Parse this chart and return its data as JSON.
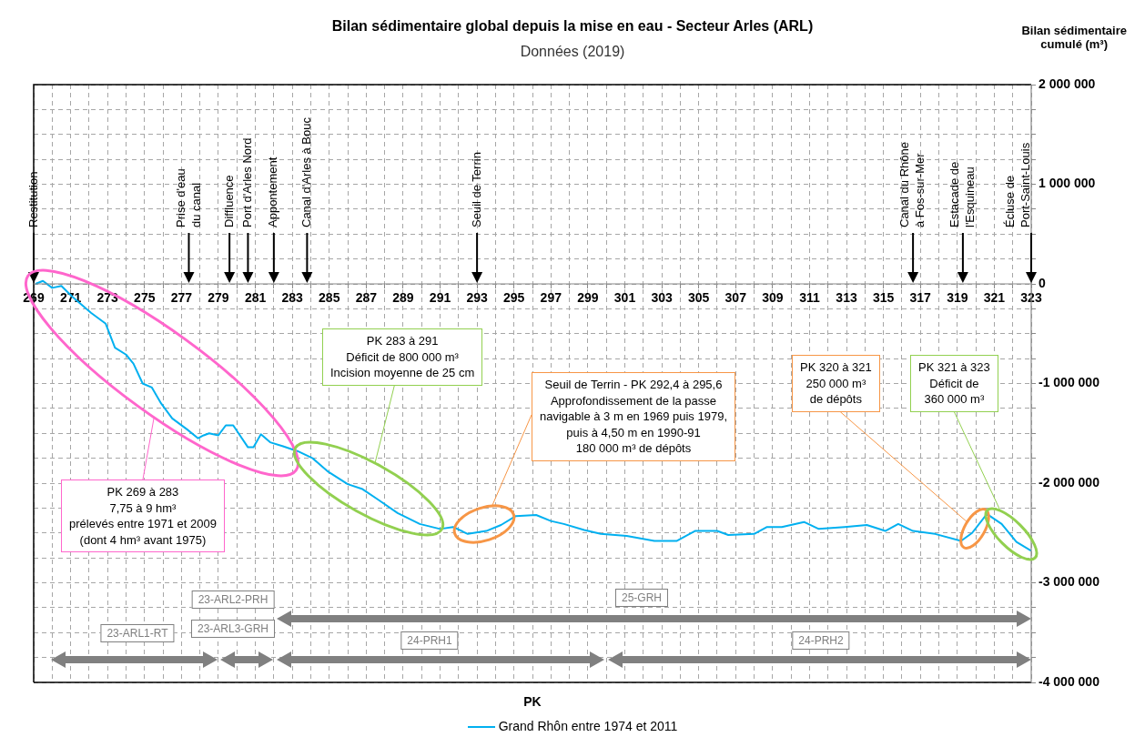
{
  "chart_data": {
    "type": "line",
    "title": "Bilan sédimentaire global depuis la mise en eau - Secteur Arles (ARL)",
    "subtitle": "Données (2019)",
    "xlabel": "PK",
    "ylabel": "Bilan sédimentaire\ncumulé (m³)",
    "x": [
      269.1,
      269.5,
      270.0,
      270.5,
      271.1,
      272.1,
      272.9,
      273.4,
      274.0,
      274.4,
      274.9,
      275.4,
      275.9,
      276.5,
      277.3,
      277.9,
      278.2,
      278.5,
      279.0,
      279.4,
      279.8,
      280.6,
      280.9,
      281.3,
      281.8,
      282.5,
      283.3,
      284.1,
      284.9,
      286.0,
      286.8,
      287.6,
      288.7,
      289.9,
      291.0,
      291.7,
      292.5,
      293.5,
      294.3,
      295.1,
      296.2,
      297.0,
      297.7,
      298.8,
      299.7,
      301.1,
      302.6,
      303.8,
      304.8,
      306.0,
      306.6,
      308.0,
      308.7,
      309.5,
      310.7,
      311.5,
      312.9,
      314.1,
      315.1,
      315.8,
      316.6,
      317.8,
      319.2,
      319.8,
      320.6,
      321.4,
      322.2,
      323.0
    ],
    "series": [
      {
        "name": "Grand Rhôn entre 1974 et 2011",
        "color": "#00b0f0",
        "values": [
          0,
          30000,
          -40000,
          -20000,
          -130000,
          -290000,
          -400000,
          -640000,
          -710000,
          -800000,
          -1000000,
          -1040000,
          -1200000,
          -1350000,
          -1460000,
          -1550000,
          -1520000,
          -1500000,
          -1520000,
          -1420000,
          -1420000,
          -1640000,
          -1640000,
          -1510000,
          -1590000,
          -1630000,
          -1680000,
          -1750000,
          -1880000,
          -2010000,
          -2060000,
          -2160000,
          -2300000,
          -2410000,
          -2460000,
          -2440000,
          -2510000,
          -2480000,
          -2420000,
          -2330000,
          -2320000,
          -2380000,
          -2410000,
          -2470000,
          -2510000,
          -2530000,
          -2580000,
          -2580000,
          -2480000,
          -2480000,
          -2520000,
          -2510000,
          -2440000,
          -2440000,
          -2390000,
          -2460000,
          -2440000,
          -2420000,
          -2480000,
          -2410000,
          -2480000,
          -2510000,
          -2580000,
          -2500000,
          -2310000,
          -2410000,
          -2590000,
          -2680000
        ]
      }
    ],
    "xlim": [
      269,
      323
    ],
    "xticks": [
      269,
      {
        "value": 270,
        "label": null
      },
      271,
      {
        "value": 272,
        "label": null
      },
      273,
      {
        "value": 274,
        "label": null
      },
      275,
      {
        "value": 276,
        "label": null
      },
      277,
      {
        "value": 278,
        "label": null
      },
      279,
      {
        "value": 280,
        "label": null
      },
      281,
      {
        "value": 282,
        "label": null
      },
      283,
      {
        "value": 284,
        "label": null
      },
      285,
      {
        "value": 286,
        "label": null
      },
      287,
      {
        "value": 288,
        "label": null
      },
      289,
      {
        "value": 290,
        "label": null
      },
      291,
      {
        "value": 292,
        "label": null
      },
      293,
      {
        "value": 294,
        "label": null
      },
      295,
      {
        "value": 296,
        "label": null
      },
      297,
      {
        "value": 298,
        "label": null
      },
      299,
      {
        "value": 300,
        "label": null
      },
      301,
      {
        "value": 302,
        "label": null
      },
      303,
      {
        "value": 304,
        "label": null
      },
      305,
      {
        "value": 306,
        "label": null
      },
      307,
      {
        "value": 308,
        "label": null
      },
      309,
      {
        "value": 310,
        "label": null
      },
      311,
      {
        "value": 312,
        "label": null
      },
      313,
      {
        "value": 314,
        "label": null
      },
      315,
      {
        "value": 316,
        "label": null
      },
      317,
      {
        "value": 318,
        "label": null
      },
      319,
      {
        "value": 320,
        "label": null
      },
      321,
      {
        "value": 322,
        "label": null
      },
      323
    ],
    "ylim": [
      -4000000,
      2000000
    ],
    "yticks": [
      {
        "value": -4000000,
        "label": "-4 000 000"
      },
      {
        "value": -3750000,
        "label": null
      },
      {
        "value": -3500000,
        "label": null
      },
      {
        "value": -3250000,
        "label": null
      },
      {
        "value": -3000000,
        "label": "-3 000 000"
      },
      {
        "value": -2750000,
        "label": null
      },
      {
        "value": -2500000,
        "label": null
      },
      {
        "value": -2250000,
        "label": null
      },
      {
        "value": -2000000,
        "label": "-2 000 000"
      },
      {
        "value": -1750000,
        "label": null
      },
      {
        "value": -1500000,
        "label": null
      },
      {
        "value": -1250000,
        "label": null
      },
      {
        "value": -1000000,
        "label": "-1 000 000"
      },
      {
        "value": -750000,
        "label": null
      },
      {
        "value": -500000,
        "label": null
      },
      {
        "value": -250000,
        "label": null
      },
      0,
      {
        "value": 250000,
        "label": null
      },
      {
        "value": 500000,
        "label": null
      },
      {
        "value": 750000,
        "label": null
      },
      {
        "value": 1000000,
        "label": "1 000 000"
      },
      {
        "value": 1250000,
        "label": null
      },
      {
        "value": 1500000,
        "label": null
      },
      {
        "value": 1750000,
        "label": null
      },
      {
        "value": 2000000,
        "label": "2 000 000"
      }
    ],
    "grid": true,
    "legend": "bottom",
    "marker": "none",
    "line_style": "solid",
    "ref_lines": [
      {
        "axis": "x",
        "value": 269,
        "label": "Restitution"
      },
      {
        "axis": "x",
        "value": 277.4,
        "label": "Prise d'eau\ndu canal"
      },
      {
        "axis": "x",
        "value": 279.6,
        "label": "Diffluence"
      },
      {
        "axis": "x",
        "value": 280.6,
        "label": "Port d'Arles Nord"
      },
      {
        "axis": "x",
        "value": 282.0,
        "label": "Appontement"
      },
      {
        "axis": "x",
        "value": 283.8,
        "label": "Canal d'Arles à Bouc"
      },
      {
        "axis": "x",
        "value": 293.0,
        "label": "Seuil de Terrin"
      },
      {
        "axis": "x",
        "value": 316.6,
        "label": "Canal du Rhône\nà Fos-sur-Mer"
      },
      {
        "axis": "x",
        "value": 319.3,
        "label": "Estacade de\nl'Esquineau"
      },
      {
        "axis": "x",
        "value": 323,
        "label": "Écluse de\nPort-Saint-Louis"
      }
    ],
    "annotations": [
      "PK 269 à 283\n7,75 à 9 hm³\nprélevés entre 1971 et 2009\n(dont 4 hm³ avant 1975)",
      "PK 283 à 291\nDéficit de 800 000 m³\nIncision moyenne de 25 cm",
      "Seuil de Terrin - PK 292,4 à 295,6\nApprofondissement de la passe\nnavigable à 3 m en 1969 puis 1979,\npuis à 4,50 m en 1990-91\n180 000 m³ de dépôts",
      "PK 320 à 321\n250 000 m³\nde dépôts",
      "PK 321 à 323\nDéficit de\n360 000 m³",
      "23-ARL1-RT",
      "23-ARL3-GRH",
      "23-ARL2-PRH",
      "24-PRH1",
      "24-PRH2",
      "25-GRH"
    ]
  }
}
